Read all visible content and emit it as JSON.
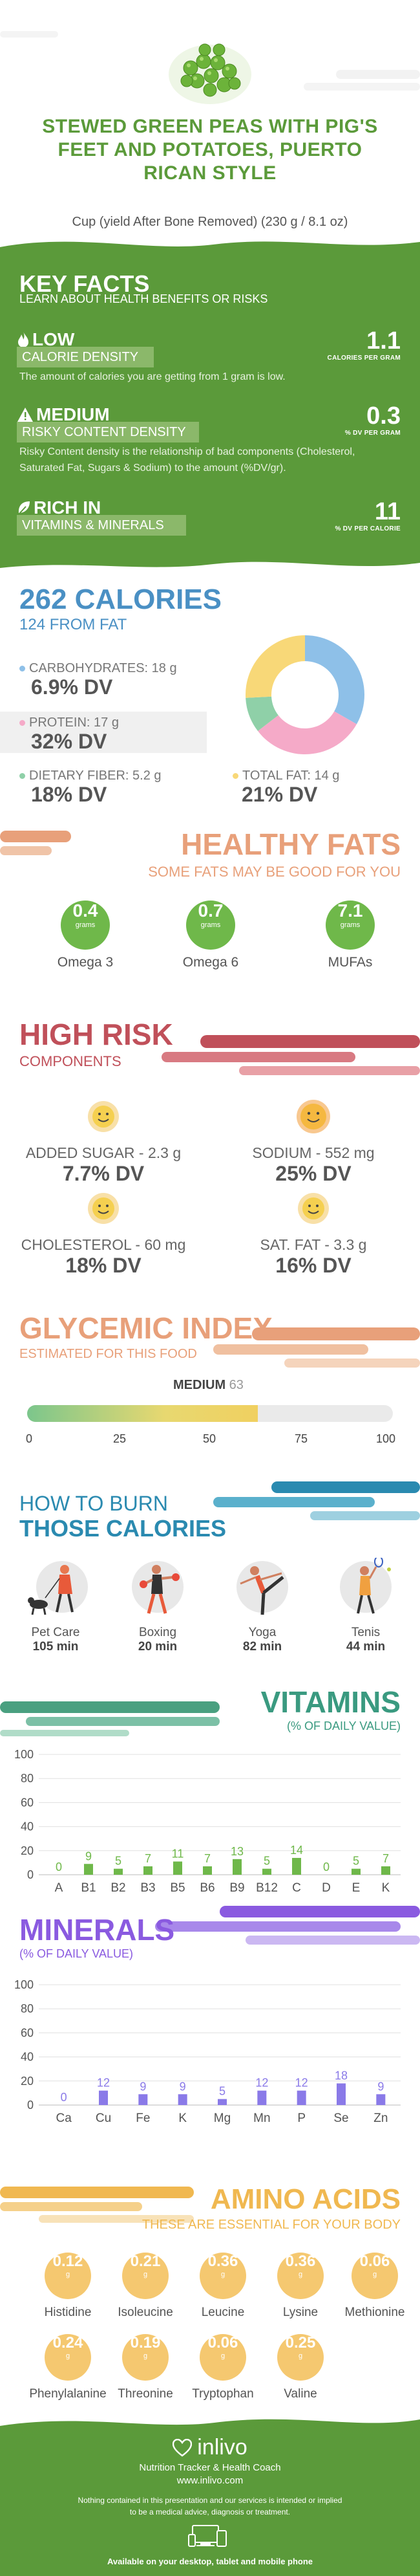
{
  "header": {
    "title_lines": [
      "STEWED GREEN PEAS WITH PIG'S",
      "FEET AND POTATOES, PUERTO",
      "RICAN STYLE"
    ],
    "serving": "Cup (yield After Bone Removed) (230 g / 8.1 oz)",
    "image_icon": "green-peas-icon"
  },
  "key_facts": {
    "title": "KEY FACTS",
    "subtitle": "LEARN ABOUT HEALTH BENEFITS OR RISKS",
    "items": [
      {
        "tag": "LOW",
        "icon": "flame-icon",
        "label": "CALORIE DENSITY",
        "desc": "The amount of calories you are getting from 1 gram is low.",
        "value": "1.1",
        "unit": "CALORIES PER GRAM"
      },
      {
        "tag": "MEDIUM",
        "icon": "warning-icon",
        "label": "RISKY CONTENT DENSITY",
        "desc": "Risky Content density is the relationship of bad components (Cholesterol, Saturated Fat, Sugars & Sodium) to the amount (%DV/gr).",
        "value": "0.3",
        "unit": "% DV PER GRAM"
      },
      {
        "tag": "RICH IN",
        "icon": "leaf-icon",
        "label": "VITAMINS & MINERALS",
        "value": "11",
        "unit": "% DV PER CALORIE"
      }
    ]
  },
  "calories": {
    "title": "262 CALORIES",
    "from_fat": "124 FROM FAT",
    "macros": [
      {
        "label": "CARBOHYDRATES: 18 g",
        "dv": "6.9% DV",
        "color": "#8ec0e8"
      },
      {
        "label": "PROTEIN: 17 g",
        "dv": "32% DV",
        "color": "#f5aac8"
      },
      {
        "label": "DIETARY FIBER: 5.2 g",
        "dv": "18% DV",
        "color": "#8fd0a8"
      },
      {
        "label": "TOTAL FAT: 14 g",
        "dv": "21% DV",
        "color": "#f8d878"
      }
    ],
    "donut": [
      {
        "name": "carbohydrates",
        "value": 18,
        "color": "#8ec0e8"
      },
      {
        "name": "protein",
        "value": 17,
        "color": "#f5aac8"
      },
      {
        "name": "fiber",
        "value": 5.2,
        "color": "#8fd0a8"
      },
      {
        "name": "fat",
        "value": 14,
        "color": "#f8d878"
      }
    ]
  },
  "healthy_fats": {
    "title": "HEALTHY FATS",
    "subtitle": "SOME FATS MAY BE GOOD FOR YOU",
    "items": [
      {
        "value": "0.4",
        "unit": "grams",
        "name": "Omega 3"
      },
      {
        "value": "0.7",
        "unit": "grams",
        "name": "Omega 6"
      },
      {
        "value": "7.1",
        "unit": "grams",
        "name": "MUFAs"
      }
    ]
  },
  "high_risk": {
    "title": "HIGH RISK",
    "subtitle": "COMPONENTS",
    "items": [
      {
        "label": "ADDED SUGAR - 2.3 g",
        "dv": "7.7% DV",
        "icon": "smiley-icon"
      },
      {
        "label": "SODIUM - 552 mg",
        "dv": "25% DV",
        "icon": "smiley-icon"
      },
      {
        "label": "CHOLESTEROL - 60 mg",
        "dv": "18% DV",
        "icon": "smiley-icon"
      },
      {
        "label": "SAT. FAT - 3.3 g",
        "dv": "16% DV",
        "icon": "smiley-icon"
      }
    ]
  },
  "glycemic": {
    "title": "GLYCEMIC INDEX",
    "subtitle": "ESTIMATED FOR THIS FOOD",
    "level": "MEDIUM",
    "value": "63",
    "value_num": 63,
    "ticks": [
      "0",
      "25",
      "50",
      "75",
      "100"
    ]
  },
  "burn": {
    "title_1": "HOW TO BURN",
    "title_2": "THOSE CALORIES",
    "items": [
      {
        "name": "Pet Care",
        "time": "105 min",
        "icon": "dog-walking-icon"
      },
      {
        "name": "Boxing",
        "time": "20 min",
        "icon": "boxing-icon"
      },
      {
        "name": "Yoga",
        "time": "82 min",
        "icon": "yoga-icon"
      },
      {
        "name": "Tenis",
        "time": "44 min",
        "icon": "tennis-icon"
      }
    ]
  },
  "vitamins": {
    "title": "VITAMINS",
    "subtitle": "(% OF DAILY VALUE)",
    "axis": [
      "100",
      "80",
      "60",
      "40",
      "20",
      "0"
    ],
    "chart_data": {
      "type": "bar",
      "categories": [
        "A",
        "B1",
        "B2",
        "B3",
        "B5",
        "B6",
        "B9",
        "B12",
        "C",
        "D",
        "E",
        "K"
      ],
      "values": [
        0,
        9,
        5,
        7,
        11,
        7,
        13,
        5,
        14,
        0,
        5,
        7
      ],
      "ylim": [
        0,
        100
      ],
      "color": "#6fb84a"
    }
  },
  "minerals": {
    "title": "MINERALS",
    "subtitle": "(% OF DAILY VALUE)",
    "axis": [
      "100",
      "80",
      "60",
      "40",
      "20",
      "0"
    ],
    "chart_data": {
      "type": "bar",
      "categories": [
        "Ca",
        "Cu",
        "Fe",
        "K",
        "Mg",
        "Mn",
        "P",
        "Se",
        "Zn"
      ],
      "values": [
        0,
        12,
        9,
        9,
        5,
        12,
        12,
        18,
        9
      ],
      "ylim": [
        0,
        100
      ],
      "color": "#8a7ae8"
    }
  },
  "amino_acids": {
    "title": "AMINO ACIDS",
    "subtitle": "THESE ARE ESSENTIAL FOR YOUR BODY",
    "items": [
      {
        "value": "0.12",
        "unit": "g",
        "name": "Histidine"
      },
      {
        "value": "0.21",
        "unit": "g",
        "name": "Isoleucine"
      },
      {
        "value": "0.36",
        "unit": "g",
        "name": "Leucine"
      },
      {
        "value": "0.36",
        "unit": "g",
        "name": "Lysine"
      },
      {
        "value": "0.06",
        "unit": "g",
        "name": "Methionine"
      },
      {
        "value": "0.24",
        "unit": "g",
        "name": "Phenylalanine"
      },
      {
        "value": "0.19",
        "unit": "g",
        "name": "Threonine"
      },
      {
        "value": "0.06",
        "unit": "g",
        "name": "Tryptophan"
      },
      {
        "value": "0.25",
        "unit": "g",
        "name": "Valine"
      }
    ]
  },
  "footer": {
    "brand": "inlivo",
    "tagline": "Nutrition Tracker & Health Coach",
    "url": "www.inlivo.com",
    "disclaimer_1": "Nothing contained in this presentation and our services is intended or implied",
    "disclaimer_2": "to be a medical advice, diagnosis or treatment.",
    "available": "Available on your desktop, tablet and mobile phone",
    "colors": {
      "green": "#5b9a3a",
      "dark_green": "#4d8a30"
    }
  }
}
